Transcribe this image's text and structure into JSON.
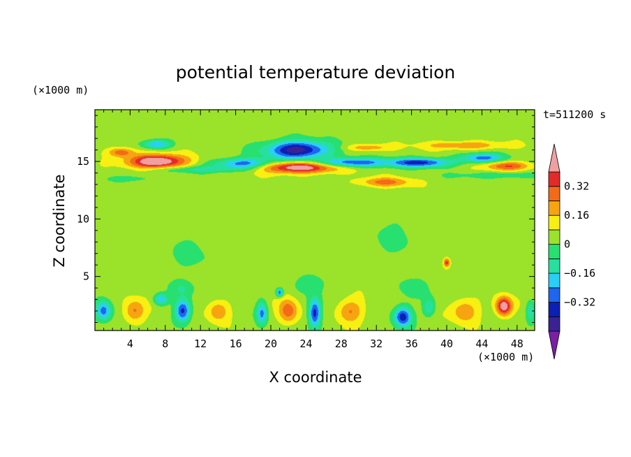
{
  "chart_data": {
    "type": "heatmap",
    "title": "potential temperature deviation",
    "xlabel": "X coordinate",
    "ylabel": "Z coordinate",
    "x_unit": "(×1000 m)",
    "y_unit": "(×1000 m)",
    "time_label": "t=511200 s",
    "xlim": [
      0,
      50
    ],
    "ylim": [
      0.3,
      19.5
    ],
    "x_ticks": [
      4,
      8,
      12,
      16,
      20,
      24,
      28,
      32,
      36,
      40,
      44,
      48
    ],
    "x_tick_labels": [
      "4",
      "8",
      "12",
      "16",
      "20",
      "24",
      "28",
      "32",
      "36",
      "40",
      "44",
      "48"
    ],
    "y_ticks": [
      5,
      10,
      15
    ],
    "y_tick_labels": [
      "5",
      "10",
      "15"
    ],
    "levels": [
      -0.48,
      -0.4,
      -0.32,
      -0.24,
      -0.16,
      -0.08,
      0,
      0.08,
      0.16,
      0.24,
      0.32,
      0.4
    ],
    "level_labels": [
      "0.32",
      "0.16",
      "0",
      "−0.16",
      "−0.32"
    ],
    "level_label_values": [
      0.32,
      0.16,
      0,
      -0.16,
      -0.32
    ],
    "colors": [
      "#7a1fa6",
      "#3a2294",
      "#0b20b5",
      "#1e66f0",
      "#29d0f5",
      "#27e0a0",
      "#27e070",
      "#9be22a",
      "#f7f012",
      "#f6a511",
      "#f36a18",
      "#e42a28",
      "#f0a0a0"
    ],
    "features": [
      {
        "x": 7,
        "z": 15.0,
        "sx": 3.2,
        "sz": 0.6,
        "a": 0.5
      },
      {
        "x": 3,
        "z": 15.8,
        "sx": 1.5,
        "sz": 0.4,
        "a": 0.25
      },
      {
        "x": 7,
        "z": 16.5,
        "sx": 1.6,
        "sz": 0.4,
        "a": -0.3
      },
      {
        "x": 23,
        "z": 16.0,
        "sx": 3.6,
        "sz": 0.8,
        "a": -0.5
      },
      {
        "x": 23,
        "z": 14.5,
        "sx": 4.5,
        "sz": 0.5,
        "a": 0.48
      },
      {
        "x": 17,
        "z": 14.8,
        "sx": 3.5,
        "sz": 0.45,
        "a": -0.35
      },
      {
        "x": 29,
        "z": 14.9,
        "sx": 4.0,
        "sz": 0.4,
        "a": -0.38
      },
      {
        "x": 33,
        "z": 13.2,
        "sx": 3.0,
        "sz": 0.4,
        "a": 0.22
      },
      {
        "x": 37,
        "z": 14.9,
        "sx": 3.5,
        "sz": 0.4,
        "a": -0.4
      },
      {
        "x": 44,
        "z": 15.3,
        "sx": 2.5,
        "sz": 0.4,
        "a": -0.32
      },
      {
        "x": 47,
        "z": 14.6,
        "sx": 2.6,
        "sz": 0.4,
        "a": 0.28
      },
      {
        "x": 42,
        "z": 16.4,
        "sx": 4.5,
        "sz": 0.35,
        "a": 0.2
      },
      {
        "x": 31,
        "z": 16.2,
        "sx": 2.5,
        "sz": 0.3,
        "a": 0.18
      },
      {
        "x": 12,
        "z": 14.3,
        "sx": 6.0,
        "sz": 0.3,
        "a": -0.15
      },
      {
        "x": 46,
        "z": 13.8,
        "sx": 5.0,
        "sz": 0.3,
        "a": -0.12
      },
      {
        "x": 4,
        "z": 13.5,
        "sx": 3.0,
        "sz": 0.3,
        "a": -0.1
      },
      {
        "x": 1,
        "z": 2.0,
        "sx": 0.9,
        "sz": 0.9,
        "a": -0.32
      },
      {
        "x": 4.5,
        "z": 2.0,
        "sx": 1.2,
        "sz": 1.0,
        "a": 0.22
      },
      {
        "x": 10,
        "z": 2.0,
        "sx": 0.9,
        "sz": 1.0,
        "a": -0.4
      },
      {
        "x": 7.5,
        "z": 3.0,
        "sx": 0.8,
        "sz": 0.5,
        "a": -0.28
      },
      {
        "x": 14,
        "z": 2.0,
        "sx": 1.2,
        "sz": 0.9,
        "a": 0.2
      },
      {
        "x": 19,
        "z": 1.8,
        "sx": 0.6,
        "sz": 1.0,
        "a": -0.3
      },
      {
        "x": 22,
        "z": 2.0,
        "sx": 1.1,
        "sz": 1.1,
        "a": 0.25
      },
      {
        "x": 25,
        "z": 1.8,
        "sx": 0.7,
        "sz": 1.3,
        "a": -0.42
      },
      {
        "x": 29,
        "z": 2.0,
        "sx": 1.5,
        "sz": 1.0,
        "a": 0.2
      },
      {
        "x": 35,
        "z": 1.5,
        "sx": 1.0,
        "sz": 0.9,
        "a": -0.42
      },
      {
        "x": 38,
        "z": 2.3,
        "sx": 0.7,
        "sz": 0.8,
        "a": -0.2
      },
      {
        "x": 42,
        "z": 2.0,
        "sx": 1.5,
        "sz": 1.0,
        "a": 0.2
      },
      {
        "x": 46.5,
        "z": 2.4,
        "sx": 0.9,
        "sz": 0.8,
        "a": 0.45
      },
      {
        "x": 49.5,
        "z": 2.0,
        "sx": 0.5,
        "sz": 0.9,
        "a": -0.2
      },
      {
        "x": 21,
        "z": 3.6,
        "sx": 0.4,
        "sz": 0.35,
        "a": -0.35
      },
      {
        "x": 40,
        "z": 6.2,
        "sx": 0.35,
        "sz": 0.35,
        "a": 0.32
      },
      {
        "x": 11,
        "z": 7.0,
        "sx": 3.0,
        "sz": 1.8,
        "a": -0.06
      },
      {
        "x": 34,
        "z": 8.5,
        "sx": 3.0,
        "sz": 2.0,
        "a": -0.06
      },
      {
        "x": 25,
        "z": 4.5,
        "sx": 2.0,
        "sz": 1.0,
        "a": -0.09
      },
      {
        "x": 36,
        "z": 4.0,
        "sx": 1.6,
        "sz": 0.9,
        "a": -0.1
      },
      {
        "x": 10,
        "z": 4.0,
        "sx": 1.5,
        "sz": 0.7,
        "a": -0.1
      }
    ]
  }
}
